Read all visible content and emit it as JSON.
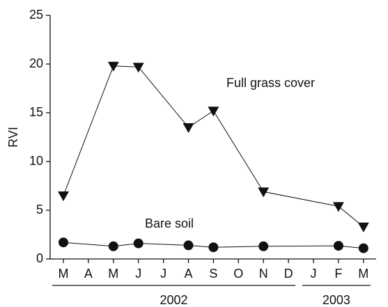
{
  "chart_data": {
    "type": "line",
    "y_label": "RVI",
    "categories": [
      "M",
      "A",
      "M",
      "J",
      "J",
      "A",
      "S",
      "O",
      "N",
      "D",
      "J",
      "F",
      "M"
    ],
    "x_groups": [
      "2002",
      "2003"
    ],
    "series": [
      {
        "name": "Full grass cover",
        "marker": "triangle-down",
        "color": "#111111",
        "values": [
          6.5,
          null,
          19.8,
          19.7,
          null,
          13.5,
          15.2,
          null,
          6.9,
          null,
          null,
          5.4,
          3.3
        ]
      },
      {
        "name": "Bare soil",
        "marker": "circle",
        "color": "#111111",
        "values": [
          1.7,
          null,
          1.3,
          1.6,
          null,
          1.4,
          1.2,
          null,
          1.3,
          null,
          null,
          1.35,
          1.1
        ]
      }
    ],
    "span_gaps": true,
    "ylim": [
      0,
      25
    ],
    "yticks": [
      0,
      5,
      10,
      15,
      20,
      25
    ]
  }
}
